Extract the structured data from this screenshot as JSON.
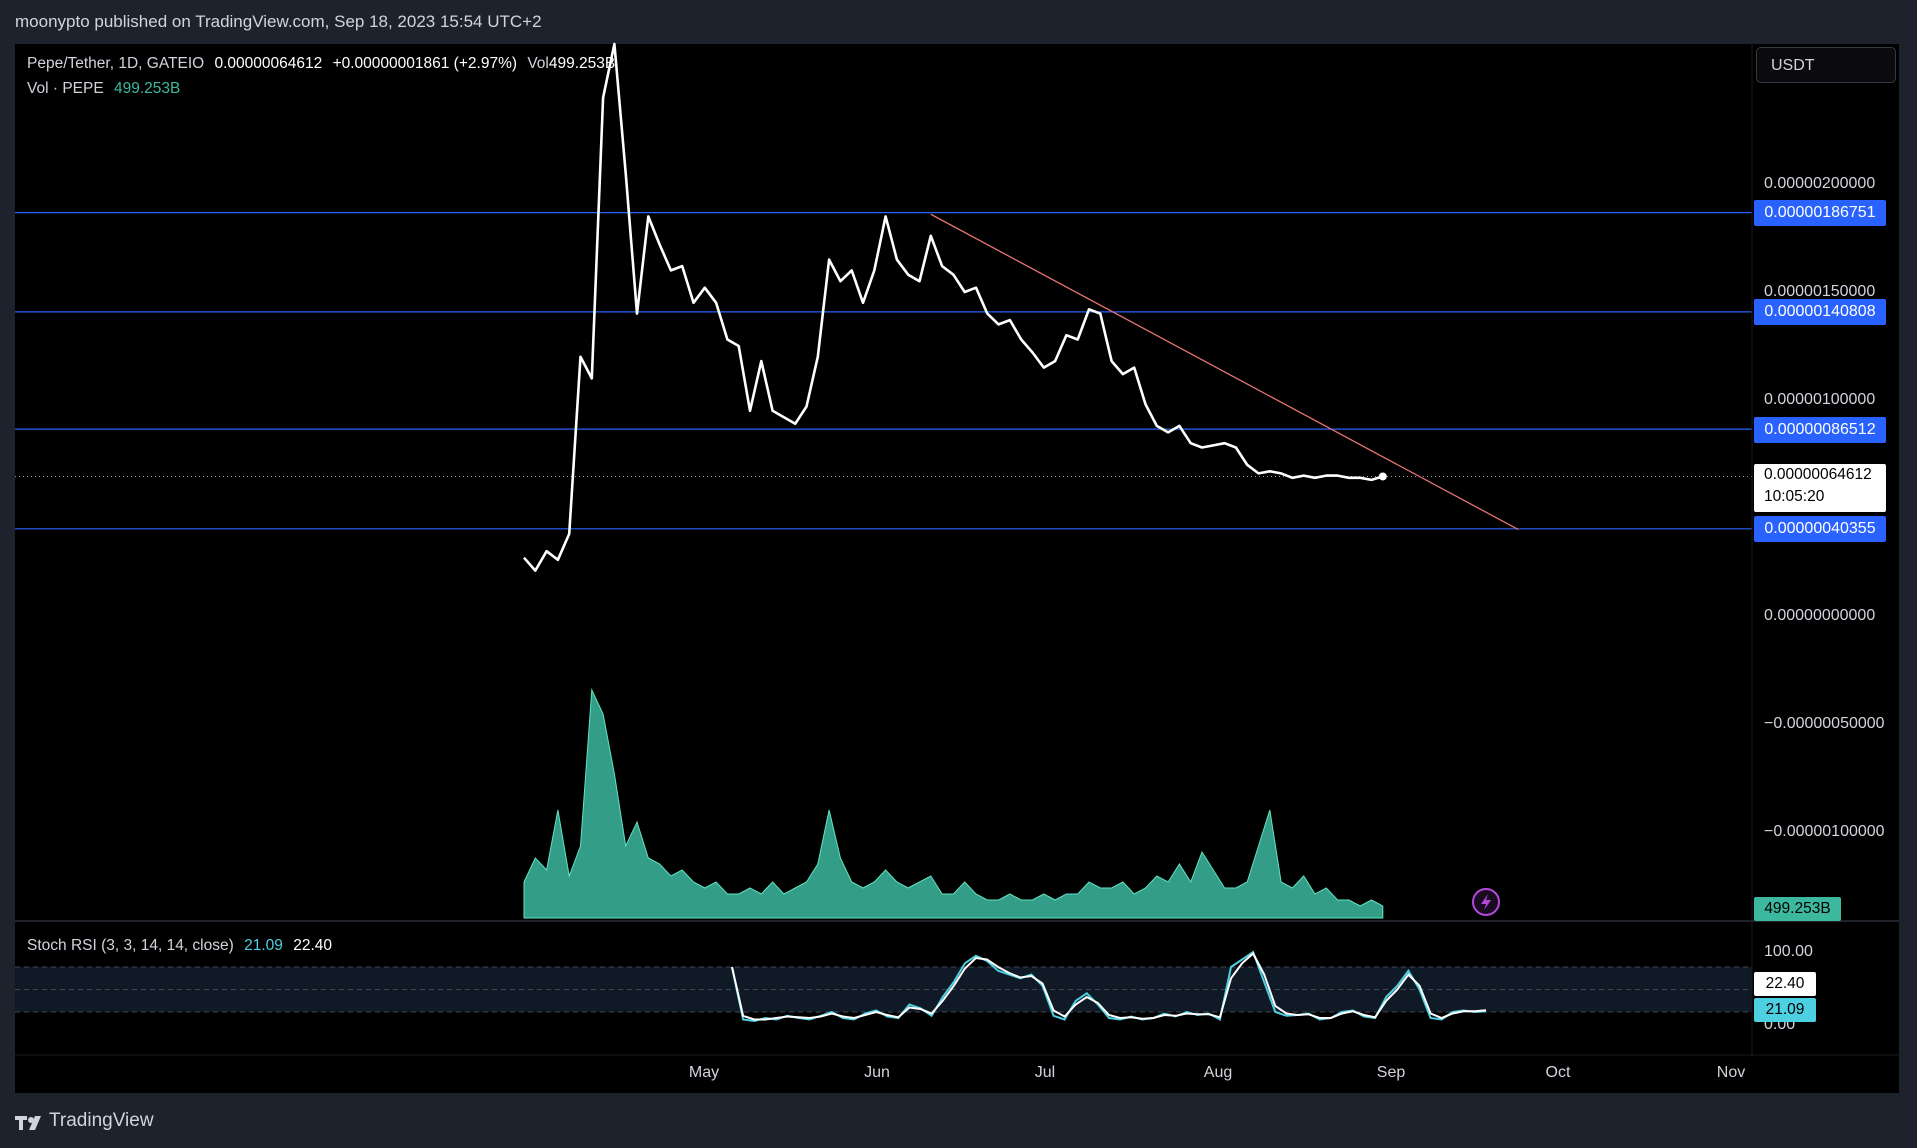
{
  "header": {
    "published": "moonypto published on TradingView.com, Sep 18, 2023 15:54 UTC+2"
  },
  "legend": {
    "symbol": "Pepe/Tether, 1D, GATEIO",
    "last": "0.00000064612",
    "change": "+0.00000001861 (+2.97%)",
    "vol_label": "Vol",
    "vol_value": "499.253B",
    "vol_line_label": "Vol · PEPE",
    "vol_line_value": "499.253B",
    "stoch_label": "Stoch RSI (3, 3, 14, 14, close)",
    "stoch_k": "21.09",
    "stoch_d": "22.40"
  },
  "currency_button": "USDT",
  "price_axis": {
    "labels": [
      "0.00000200000",
      "0.00000150000",
      "0.00000100000",
      "0.00000000000",
      "−0.00000050000",
      "−0.00000100000"
    ]
  },
  "levels": {
    "values": [
      "0.00000186751",
      "0.00000140808",
      "0.00000086512",
      "0.00000040355"
    ],
    "color": "#2962ff"
  },
  "last_price_tag": {
    "price": "0.00000064612",
    "countdown": "10:05:20"
  },
  "volume_tag": "499.253B",
  "rsi_axis": {
    "top": "100.00",
    "bottom": "0.00",
    "d_tag": "22.40",
    "k_tag": "21.09"
  },
  "time_axis": {
    "labels": [
      "May",
      "Jun",
      "Jul",
      "Aug",
      "Sep",
      "Oct",
      "Nov"
    ]
  },
  "footer": {
    "brand": "TradingView"
  },
  "colors": {
    "price_line": "#ffffff",
    "volume": "#3cb89f",
    "rsi_k": "#4dd0e1",
    "rsi_d": "#ffffff",
    "trendline": "#e57373"
  },
  "chart_data": {
    "type": "line",
    "title": "Pepe/Tether, 1D, GATEIO",
    "series": [
      {
        "name": "Pepe/Tether",
        "unit": "USDT",
        "x": [
          "2023-04-19",
          "2023-04-21",
          "2023-04-23",
          "2023-04-25",
          "2023-04-27",
          "2023-04-29",
          "2023-05-01",
          "2023-05-03",
          "2023-05-05",
          "2023-05-07",
          "2023-05-09",
          "2023-05-11",
          "2023-05-13",
          "2023-05-15",
          "2023-05-17",
          "2023-05-19",
          "2023-05-21",
          "2023-05-23",
          "2023-05-25",
          "2023-05-27",
          "2023-05-29",
          "2023-05-31",
          "2023-06-02",
          "2023-06-04",
          "2023-06-06",
          "2023-06-08",
          "2023-06-10",
          "2023-06-12",
          "2023-06-14",
          "2023-06-16",
          "2023-06-18",
          "2023-06-20",
          "2023-06-22",
          "2023-06-24",
          "2023-06-26",
          "2023-06-28",
          "2023-06-30",
          "2023-07-02",
          "2023-07-04",
          "2023-07-06",
          "2023-07-08",
          "2023-07-10",
          "2023-07-12",
          "2023-07-14",
          "2023-07-16",
          "2023-07-18",
          "2023-07-20",
          "2023-07-22",
          "2023-07-24",
          "2023-07-26",
          "2023-07-28",
          "2023-07-30",
          "2023-08-01",
          "2023-08-03",
          "2023-08-05",
          "2023-08-07",
          "2023-08-09",
          "2023-08-11",
          "2023-08-13",
          "2023-08-15",
          "2023-08-17",
          "2023-08-19",
          "2023-08-21",
          "2023-08-23",
          "2023-08-25",
          "2023-08-27",
          "2023-08-29",
          "2023-08-31",
          "2023-09-02",
          "2023-09-04",
          "2023-09-06",
          "2023-09-08",
          "2023-09-10",
          "2023-09-12",
          "2023-09-14",
          "2023-09-16",
          "2023-09-18"
        ],
        "values": [
          2.7e-07,
          2.1e-07,
          3e-07,
          2.6e-07,
          3.8e-07,
          1.2e-06,
          1.1e-06,
          2.4e-06,
          2.8e-06,
          2.05e-06,
          1.4e-06,
          1.85e-06,
          1.72e-06,
          1.6e-06,
          1.62e-06,
          1.45e-06,
          1.52e-06,
          1.45e-06,
          1.28e-06,
          1.25e-06,
          9.5e-07,
          1.18e-06,
          9.5e-07,
          9.2e-07,
          8.9e-07,
          9.7e-07,
          1.2e-06,
          1.65e-06,
          1.55e-06,
          1.6e-06,
          1.45e-06,
          1.6e-06,
          1.85e-06,
          1.65e-06,
          1.58e-06,
          1.55e-06,
          1.76e-06,
          1.62e-06,
          1.58e-06,
          1.5e-06,
          1.52e-06,
          1.4e-06,
          1.35e-06,
          1.37e-06,
          1.28e-06,
          1.22e-06,
          1.15e-06,
          1.18e-06,
          1.3e-06,
          1.28e-06,
          1.42e-06,
          1.4e-06,
          1.18e-06,
          1.12e-06,
          1.15e-06,
          9.8e-07,
          8.8e-07,
          8.5e-07,
          8.8e-07,
          8e-07,
          7.8e-07,
          7.9e-07,
          8e-07,
          7.8e-07,
          7e-07,
          6.6e-07,
          6.7e-07,
          6.6e-07,
          6.4e-07,
          6.5e-07,
          6.4e-07,
          6.5e-07,
          6.5e-07,
          6.4e-07,
          6.4e-07,
          6.3e-07,
          6.4612e-07
        ]
      }
    ],
    "ylim": [
      -1.4e-06,
      2.8e-06
    ],
    "y_ticks": [
      2e-06,
      1.5e-06,
      1e-06,
      0,
      -5e-07,
      -1e-06
    ],
    "horizontal_levels": [
      1.86751e-06,
      1.40808e-06,
      8.6512e-07,
      4.0355e-07
    ],
    "trendline": {
      "from": [
        "2023-06-30",
        1.86e-06
      ],
      "to": [
        "2023-10-12",
        4e-07
      ]
    },
    "volume": {
      "name": "Vol · PEPE",
      "values": [
        0.3,
        0.5,
        0.4,
        0.9,
        0.35,
        0.6,
        1.9,
        1.7,
        1.2,
        0.6,
        0.8,
        0.5,
        0.45,
        0.35,
        0.4,
        0.3,
        0.25,
        0.3,
        0.2,
        0.2,
        0.25,
        0.2,
        0.3,
        0.2,
        0.25,
        0.3,
        0.45,
        0.9,
        0.5,
        0.3,
        0.25,
        0.3,
        0.4,
        0.3,
        0.25,
        0.3,
        0.35,
        0.2,
        0.2,
        0.3,
        0.2,
        0.15,
        0.15,
        0.2,
        0.15,
        0.15,
        0.2,
        0.15,
        0.2,
        0.2,
        0.3,
        0.25,
        0.25,
        0.3,
        0.2,
        0.25,
        0.35,
        0.3,
        0.45,
        0.3,
        0.55,
        0.4,
        0.25,
        0.25,
        0.3,
        0.6,
        0.9,
        0.3,
        0.25,
        0.35,
        0.2,
        0.25,
        0.15,
        0.15,
        0.1,
        0.15,
        0.1
      ],
      "unit": "relative"
    },
    "stoch_rsi": {
      "k": [
        80,
        10,
        8,
        12,
        10,
        15,
        12,
        10,
        15,
        20,
        12,
        10,
        18,
        22,
        14,
        12,
        30,
        25,
        15,
        40,
        60,
        85,
        95,
        88,
        75,
        70,
        65,
        70,
        55,
        15,
        10,
        35,
        45,
        30,
        12,
        10,
        14,
        10,
        12,
        18,
        14,
        20,
        16,
        18,
        10,
        80,
        90,
        100,
        60,
        20,
        15,
        16,
        18,
        10,
        12,
        20,
        22,
        14,
        12,
        40,
        55,
        75,
        50,
        12,
        10,
        20,
        22,
        20,
        21.09
      ],
      "d": [
        80,
        15,
        10,
        10,
        12,
        14,
        13,
        12,
        14,
        18,
        14,
        12,
        16,
        20,
        16,
        13,
        26,
        24,
        18,
        35,
        55,
        78,
        92,
        90,
        80,
        72,
        66,
        68,
        58,
        22,
        14,
        30,
        40,
        32,
        16,
        12,
        13,
        11,
        12,
        16,
        15,
        18,
        17,
        17,
        13,
        65,
        85,
        98,
        70,
        28,
        18,
        16,
        17,
        12,
        12,
        18,
        21,
        16,
        13,
        35,
        50,
        70,
        55,
        18,
        12,
        18,
        21,
        21,
        22.4
      ],
      "upper_band": 80,
      "lower_band": 20
    },
    "x_ticks": [
      "May",
      "Jun",
      "Jul",
      "Aug",
      "Sep",
      "Oct",
      "Nov"
    ]
  }
}
